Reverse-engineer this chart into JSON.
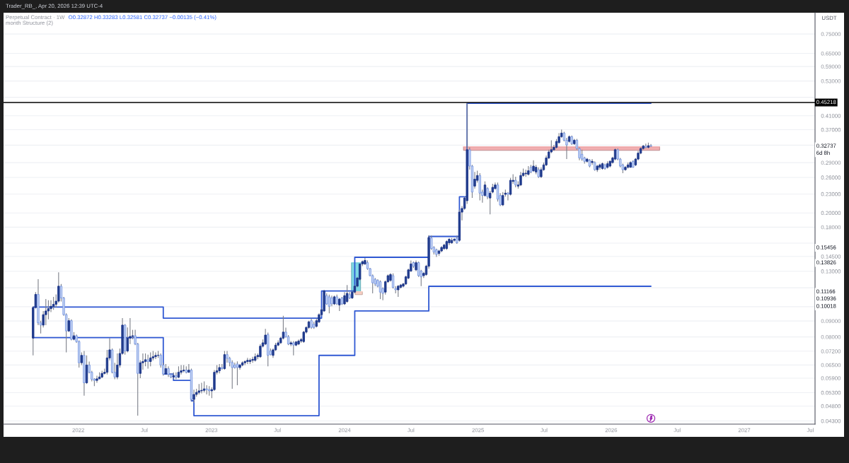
{
  "chart_data": {
    "type": "candlestick",
    "title": "Perpetual Contract · 1W",
    "subtitle": "O0.32872 H0.33283 L0.32581 C0.32737 −0.00135 (−0.41%)",
    "ylabel": "USDT",
    "annotations": [
      "Trader_RB_, Apr 20, 2026 12:39 UTC-4",
      "month Structure (2)",
      {
        "text": "0.32737",
        "y": 0.32737
      },
      "6d 8h",
      {
        "text": "0.15456",
        "y": 0.15456
      },
      {
        "text": "0.13826",
        "y": 0.13826
      },
      {
        "text": "0.11166",
        "y": 0.11166
      },
      "0.10936",
      {
        "text": "0.10018",
        "y": 0.10018
      }
    ],
    "x": [
      "2021-08-30",
      "2021-09-06",
      "2021-09-13",
      "2021-09-20",
      "2021-09-27",
      "2021-10-04",
      "2021-10-11",
      "2021-10-18",
      "2021-10-25",
      "2021-11-01",
      "2021-11-08",
      "2021-11-15",
      "2021-11-22",
      "2021-11-29",
      "2021-12-06",
      "2021-12-13",
      "2021-12-20",
      "2021-12-27",
      "2022-01-03",
      "2022-01-10",
      "2022-01-17",
      "2022-01-24",
      "2022-01-31",
      "2022-02-07",
      "2022-02-14",
      "2022-02-21",
      "2022-02-28",
      "2022-03-07",
      "2022-03-14",
      "2022-03-21",
      "2022-03-28",
      "2022-04-04",
      "2022-04-11",
      "2022-04-18",
      "2022-04-25",
      "2022-05-02",
      "2022-05-09",
      "2022-05-16",
      "2022-05-23",
      "2022-05-30",
      "2022-06-06",
      "2022-06-13",
      "2022-06-20",
      "2022-06-27",
      "2022-07-04",
      "2022-07-11",
      "2022-07-18",
      "2022-07-25",
      "2022-08-01",
      "2022-08-08",
      "2022-08-15",
      "2022-08-22",
      "2022-08-29",
      "2022-09-05",
      "2022-09-12",
      "2022-09-19",
      "2022-09-26",
      "2022-10-03",
      "2022-10-10",
      "2022-10-17",
      "2022-10-24",
      "2022-10-31",
      "2022-11-07",
      "2022-11-14",
      "2022-11-21",
      "2022-11-28",
      "2022-12-05",
      "2022-12-12",
      "2022-12-19",
      "2022-12-26",
      "2023-01-02",
      "2023-01-09",
      "2023-01-16",
      "2023-01-23",
      "2023-01-30",
      "2023-02-06",
      "2023-02-13",
      "2023-02-20",
      "2023-02-27",
      "2023-03-06",
      "2023-03-13",
      "2023-03-20",
      "2023-03-27",
      "2023-04-03",
      "2023-04-10",
      "2023-04-17",
      "2023-04-24",
      "2023-05-01",
      "2023-05-08",
      "2023-05-15",
      "2023-05-22",
      "2023-05-29",
      "2023-06-05",
      "2023-06-12",
      "2023-06-19",
      "2023-06-26",
      "2023-07-03",
      "2023-07-10",
      "2023-07-17",
      "2023-07-24",
      "2023-07-31",
      "2023-08-07",
      "2023-08-14",
      "2023-08-21",
      "2023-08-28",
      "2023-09-04",
      "2023-09-11",
      "2023-09-18",
      "2023-09-25",
      "2023-10-02",
      "2023-10-09",
      "2023-10-16",
      "2023-10-23",
      "2023-10-30",
      "2023-11-06",
      "2023-11-13",
      "2023-11-20",
      "2023-11-27",
      "2023-12-04",
      "2023-12-11",
      "2023-12-18",
      "2023-12-25",
      "2024-01-01",
      "2024-01-08",
      "2024-01-15",
      "2024-01-22",
      "2024-01-29",
      "2024-02-05",
      "2024-02-12",
      "2024-02-19",
      "2024-02-26",
      "2024-03-04",
      "2024-03-11",
      "2024-03-18",
      "2024-03-25",
      "2024-04-01",
      "2024-04-08",
      "2024-04-15",
      "2024-04-22",
      "2024-04-29",
      "2024-05-06",
      "2024-05-13",
      "2024-05-20",
      "2024-05-27",
      "2024-06-03",
      "2024-06-10",
      "2024-06-17",
      "2024-06-24",
      "2024-07-01",
      "2024-07-08",
      "2024-07-15",
      "2024-07-22",
      "2024-07-29",
      "2024-08-05",
      "2024-08-12",
      "2024-08-19",
      "2024-08-26",
      "2024-09-02",
      "2024-09-09",
      "2024-09-16",
      "2024-09-23",
      "2024-09-30",
      "2024-10-07",
      "2024-10-14",
      "2024-10-21",
      "2024-10-28",
      "2024-11-04",
      "2024-11-11",
      "2024-11-18",
      "2024-11-25",
      "2024-12-02",
      "2024-12-09",
      "2024-12-16",
      "2024-12-23",
      "2024-12-30",
      "2025-01-06",
      "2025-01-13",
      "2025-01-20",
      "2025-01-27",
      "2025-02-03",
      "2025-02-10",
      "2025-02-17",
      "2025-02-24",
      "2025-03-03",
      "2025-03-10",
      "2025-03-17",
      "2025-03-24",
      "2025-03-31",
      "2025-04-07",
      "2025-04-14",
      "2025-04-21",
      "2025-04-28",
      "2025-05-05",
      "2025-05-12",
      "2025-05-19",
      "2025-05-26",
      "2025-06-02",
      "2025-06-09",
      "2025-06-16",
      "2025-06-23",
      "2025-06-30",
      "2025-07-07",
      "2025-07-14",
      "2025-07-21",
      "2025-07-28",
      "2025-08-04",
      "2025-08-11",
      "2025-08-18",
      "2025-08-25",
      "2025-09-01",
      "2025-09-08",
      "2025-09-15",
      "2025-09-22",
      "2025-09-29",
      "2025-10-06",
      "2025-10-13",
      "2025-10-20",
      "2025-10-27",
      "2025-11-03",
      "2025-11-10",
      "2025-11-17",
      "2025-11-24",
      "2025-12-01",
      "2025-12-08",
      "2025-12-15",
      "2025-12-22",
      "2025-12-29",
      "2026-01-05",
      "2026-01-12",
      "2026-01-19",
      "2026-01-26",
      "2026-02-02",
      "2026-02-09",
      "2026-02-16",
      "2026-02-23",
      "2026-03-02",
      "2026-03-09",
      "2026-03-16",
      "2026-03-23",
      "2026-03-30",
      "2026-04-06",
      "2026-04-13",
      "2026-04-20"
    ],
    "ohlc": [
      [
        0.0793,
        0.1003,
        0.0698,
        0.0994
      ],
      [
        0.0994,
        0.1114,
        0.0986,
        0.1095
      ],
      [
        0.1095,
        0.1225,
        0.0873,
        0.0887
      ],
      [
        0.0887,
        0.0902,
        0.0821,
        0.0873
      ],
      [
        0.0873,
        0.0969,
        0.0858,
        0.0943
      ],
      [
        0.0943,
        0.1058,
        0.0873,
        0.0969
      ],
      [
        0.0969,
        0.1049,
        0.0911,
        0.0986
      ],
      [
        0.0986,
        0.1049,
        0.0961,
        0.1003
      ],
      [
        0.1003,
        0.1075,
        0.0978,
        0.1018
      ],
      [
        0.1018,
        0.1095,
        0.0994,
        0.1042
      ],
      [
        0.1042,
        0.129,
        0.103,
        0.1164
      ],
      [
        0.1164,
        0.1183,
        0.1039,
        0.1067
      ],
      [
        0.1067,
        0.1075,
        0.0935,
        0.0943
      ],
      [
        0.0943,
        0.0953,
        0.0714,
        0.0836
      ],
      [
        0.0836,
        0.0919,
        0.0829,
        0.0902
      ],
      [
        0.0902,
        0.0911,
        0.078,
        0.0786
      ],
      [
        0.0786,
        0.0829,
        0.078,
        0.0807
      ],
      [
        0.0807,
        0.0814,
        0.0766,
        0.0773
      ],
      [
        0.0773,
        0.078,
        0.0638,
        0.0661
      ],
      [
        0.0661,
        0.0714,
        0.065,
        0.0698
      ],
      [
        0.0698,
        0.0721,
        0.0518,
        0.057
      ],
      [
        0.057,
        0.0698,
        0.0565,
        0.065
      ],
      [
        0.065,
        0.0667,
        0.0611,
        0.0616
      ],
      [
        0.0616,
        0.0623,
        0.0576,
        0.0585
      ],
      [
        0.0585,
        0.059,
        0.0556,
        0.058
      ],
      [
        0.058,
        0.0601,
        0.057,
        0.0587
      ],
      [
        0.0587,
        0.0616,
        0.0585,
        0.0595
      ],
      [
        0.0595,
        0.0623,
        0.059,
        0.0611
      ],
      [
        0.0611,
        0.0633,
        0.0606,
        0.0616
      ],
      [
        0.0616,
        0.0727,
        0.0606,
        0.0685
      ],
      [
        0.0685,
        0.0793,
        0.0673,
        0.0727
      ],
      [
        0.0727,
        0.0734,
        0.0611,
        0.0616
      ],
      [
        0.0616,
        0.0661,
        0.0585,
        0.0595
      ],
      [
        0.0595,
        0.0708,
        0.0585,
        0.065
      ],
      [
        0.065,
        0.0734,
        0.0638,
        0.0708
      ],
      [
        0.0708,
        0.0919,
        0.0702,
        0.0873
      ],
      [
        0.0873,
        0.0879,
        0.0702,
        0.0721
      ],
      [
        0.0721,
        0.0858,
        0.0714,
        0.0793
      ],
      [
        0.0793,
        0.0919,
        0.0759,
        0.0803
      ],
      [
        0.0803,
        0.0843,
        0.0786,
        0.0807
      ],
      [
        0.0807,
        0.0843,
        0.0753,
        0.0759
      ],
      [
        0.0759,
        0.0766,
        0.0447,
        0.0611
      ],
      [
        0.0611,
        0.0673,
        0.059,
        0.0661
      ],
      [
        0.0661,
        0.0708,
        0.0628,
        0.0667
      ],
      [
        0.0667,
        0.0708,
        0.0644,
        0.0676
      ],
      [
        0.0676,
        0.0702,
        0.0633,
        0.0667
      ],
      [
        0.0667,
        0.0714,
        0.0644,
        0.0685
      ],
      [
        0.0685,
        0.0721,
        0.0673,
        0.0691
      ],
      [
        0.0691,
        0.0714,
        0.0679,
        0.0698
      ],
      [
        0.0698,
        0.0721,
        0.0685,
        0.0699
      ],
      [
        0.0699,
        0.0708,
        0.0638,
        0.065
      ],
      [
        0.065,
        0.0661,
        0.0601,
        0.0608
      ],
      [
        0.0608,
        0.0655,
        0.0606,
        0.0633
      ],
      [
        0.0633,
        0.0644,
        0.0595,
        0.0606
      ],
      [
        0.0606,
        0.0611,
        0.059,
        0.0595
      ],
      [
        0.0595,
        0.0616,
        0.0585,
        0.0601
      ],
      [
        0.0601,
        0.0616,
        0.0585,
        0.0594
      ],
      [
        0.0594,
        0.0644,
        0.059,
        0.0616
      ],
      [
        0.0616,
        0.065,
        0.0606,
        0.0623
      ],
      [
        0.0623,
        0.065,
        0.0616,
        0.0626
      ],
      [
        0.0626,
        0.0644,
        0.0611,
        0.0616
      ],
      [
        0.0616,
        0.0655,
        0.0614,
        0.0626
      ],
      [
        0.0626,
        0.0633,
        0.0499,
        0.0504
      ],
      [
        0.0504,
        0.0542,
        0.0491,
        0.0523
      ],
      [
        0.0523,
        0.0545,
        0.0514,
        0.0531
      ],
      [
        0.0531,
        0.0565,
        0.0523,
        0.0537
      ],
      [
        0.0537,
        0.057,
        0.0527,
        0.0539
      ],
      [
        0.0539,
        0.0576,
        0.0531,
        0.0545
      ],
      [
        0.0545,
        0.056,
        0.0523,
        0.0542
      ],
      [
        0.0542,
        0.0556,
        0.0518,
        0.0537
      ],
      [
        0.0537,
        0.0551,
        0.0509,
        0.0542
      ],
      [
        0.0542,
        0.0626,
        0.0537,
        0.0616
      ],
      [
        0.0616,
        0.065,
        0.0606,
        0.0623
      ],
      [
        0.0623,
        0.0655,
        0.0611,
        0.0638
      ],
      [
        0.0638,
        0.0655,
        0.0628,
        0.0633
      ],
      [
        0.0633,
        0.0721,
        0.0628,
        0.0702
      ],
      [
        0.0702,
        0.0721,
        0.0662,
        0.0683
      ],
      [
        0.0683,
        0.0691,
        0.0644,
        0.0662
      ],
      [
        0.0662,
        0.0673,
        0.0545,
        0.0638
      ],
      [
        0.065,
        0.0662,
        0.0633,
        0.0638
      ],
      [
        0.0655,
        0.0668,
        0.056,
        0.0638
      ],
      [
        0.0638,
        0.0655,
        0.0628,
        0.065
      ],
      [
        0.065,
        0.0668,
        0.0644,
        0.0661
      ],
      [
        0.0661,
        0.0673,
        0.065,
        0.0667
      ],
      [
        0.0667,
        0.0685,
        0.0655,
        0.0673
      ],
      [
        0.0667,
        0.0683,
        0.0655,
        0.0673
      ],
      [
        0.0673,
        0.0691,
        0.0661,
        0.0678
      ],
      [
        0.0673,
        0.0708,
        0.0667,
        0.0691
      ],
      [
        0.0691,
        0.0708,
        0.0678,
        0.0698
      ],
      [
        0.0691,
        0.0759,
        0.0685,
        0.0747
      ],
      [
        0.0747,
        0.0785,
        0.074,
        0.0766
      ],
      [
        0.0759,
        0.0849,
        0.0753,
        0.0811
      ],
      [
        0.0814,
        0.0826,
        0.0644,
        0.0698
      ],
      [
        0.0721,
        0.0734,
        0.0698,
        0.0702
      ],
      [
        0.0698,
        0.0734,
        0.0685,
        0.0727
      ],
      [
        0.0727,
        0.0766,
        0.0721,
        0.0753
      ],
      [
        0.0753,
        0.078,
        0.0747,
        0.0766
      ],
      [
        0.0766,
        0.0801,
        0.0759,
        0.0793
      ],
      [
        0.0793,
        0.0935,
        0.0785,
        0.0829
      ],
      [
        0.0829,
        0.0857,
        0.0795,
        0.0801
      ],
      [
        0.0801,
        0.0811,
        0.0753,
        0.0759
      ],
      [
        0.0759,
        0.0776,
        0.0747,
        0.0766
      ],
      [
        0.0766,
        0.0776,
        0.0698,
        0.0753
      ],
      [
        0.0753,
        0.0776,
        0.0747,
        0.0771
      ],
      [
        0.0759,
        0.0785,
        0.0753,
        0.0776
      ],
      [
        0.0776,
        0.0793,
        0.0766,
        0.0785
      ],
      [
        0.0773,
        0.0836,
        0.0766,
        0.0829
      ],
      [
        0.0829,
        0.0865,
        0.0821,
        0.0858
      ],
      [
        0.0858,
        0.0902,
        0.0849,
        0.0894
      ],
      [
        0.0902,
        0.0917,
        0.0849,
        0.0858
      ],
      [
        0.0879,
        0.0894,
        0.0849,
        0.0858
      ],
      [
        0.0865,
        0.0917,
        0.0858,
        0.0902
      ],
      [
        0.0894,
        0.0953,
        0.0886,
        0.0943
      ],
      [
        0.0943,
        0.0986,
        0.0935,
        0.0978
      ],
      [
        0.0969,
        0.1133,
        0.0963,
        0.1123
      ],
      [
        0.1085,
        0.1104,
        0.1013,
        0.1021
      ],
      [
        0.1076,
        0.1094,
        0.0953,
        0.1003
      ],
      [
        0.1067,
        0.1085,
        0.1003,
        0.1021
      ],
      [
        0.1021,
        0.1085,
        0.1013,
        0.1076
      ],
      [
        0.1076,
        0.1094,
        0.1013,
        0.1021
      ],
      [
        0.1013,
        0.1067,
        0.0969,
        0.1058
      ],
      [
        0.1067,
        0.1076,
        0.1013,
        0.1021
      ],
      [
        0.1021,
        0.1114,
        0.1013,
        0.1085
      ],
      [
        0.1039,
        0.1174,
        0.103,
        0.1104
      ],
      [
        0.1094,
        0.1114,
        0.1058,
        0.1067
      ],
      [
        0.1067,
        0.1123,
        0.1058,
        0.1114
      ],
      [
        0.1114,
        0.1174,
        0.1104,
        0.1164
      ],
      [
        0.1164,
        0.1247,
        0.1154,
        0.1236
      ],
      [
        0.1225,
        0.1372,
        0.1215,
        0.1372
      ],
      [
        0.1372,
        0.1408,
        0.1349,
        0.1396
      ],
      [
        0.1372,
        0.1434,
        0.1363,
        0.1408
      ],
      [
        0.1385,
        0.1408,
        0.1313,
        0.1325
      ],
      [
        0.1325,
        0.1333,
        0.1252,
        0.1258
      ],
      [
        0.1258,
        0.1269,
        0.1104,
        0.1193
      ],
      [
        0.1225,
        0.1236,
        0.1164,
        0.1183
      ],
      [
        0.1215,
        0.1225,
        0.1154,
        0.1164
      ],
      [
        0.1203,
        0.1215,
        0.1058,
        0.1114
      ],
      [
        0.1144,
        0.1154,
        0.1049,
        0.1104
      ],
      [
        0.1114,
        0.1215,
        0.1094,
        0.1203
      ],
      [
        0.1203,
        0.1269,
        0.1193,
        0.1258
      ],
      [
        0.1215,
        0.1281,
        0.1203,
        0.1269
      ],
      [
        0.1258,
        0.128,
        0.1144,
        0.1154
      ],
      [
        0.1144,
        0.1164,
        0.1104,
        0.1133
      ],
      [
        0.1133,
        0.1174,
        0.1076,
        0.1164
      ],
      [
        0.1154,
        0.1183,
        0.1144,
        0.1174
      ],
      [
        0.1164,
        0.1193,
        0.1154,
        0.1183
      ],
      [
        0.1183,
        0.1258,
        0.1174,
        0.1247
      ],
      [
        0.1236,
        0.1325,
        0.1225,
        0.1313
      ],
      [
        0.1302,
        0.1408,
        0.1292,
        0.1372
      ],
      [
        0.1385,
        0.1396,
        0.1333,
        0.1349
      ],
      [
        0.1313,
        0.1408,
        0.1302,
        0.1385
      ],
      [
        0.1385,
        0.1396,
        0.1247,
        0.1258
      ],
      [
        0.1302,
        0.1313,
        0.1164,
        0.1247
      ],
      [
        0.1258,
        0.1292,
        0.1236,
        0.128
      ],
      [
        0.1269,
        0.1363,
        0.1258,
        0.1349
      ],
      [
        0.1349,
        0.1697,
        0.1325,
        0.1667
      ],
      [
        0.1662,
        0.1692,
        0.1523,
        0.1537
      ],
      [
        0.155,
        0.1564,
        0.1471,
        0.1497
      ],
      [
        0.1523,
        0.1537,
        0.1444,
        0.1471
      ],
      [
        0.1483,
        0.1523,
        0.1458,
        0.151
      ],
      [
        0.151,
        0.1564,
        0.1497,
        0.155
      ],
      [
        0.1537,
        0.1591,
        0.1523,
        0.1577
      ],
      [
        0.1537,
        0.1633,
        0.1523,
        0.1619
      ],
      [
        0.1604,
        0.1662,
        0.1577,
        0.1646
      ],
      [
        0.1604,
        0.1662,
        0.1591,
        0.1633
      ],
      [
        0.1633,
        0.1662,
        0.1619,
        0.1646
      ],
      [
        0.1662,
        0.1692,
        0.1591,
        0.1604
      ],
      [
        0.1633,
        0.2048,
        0.1619,
        0.2012
      ],
      [
        0.2012,
        0.2103,
        0.1894,
        0.2067
      ],
      [
        0.2067,
        0.2254,
        0.2048,
        0.2233
      ],
      [
        0.2189,
        0.4498,
        0.2138,
        0.3191
      ],
      [
        0.3191,
        0.3248,
        0.2752,
        0.2827
      ],
      [
        0.2827,
        0.2852,
        0.2233,
        0.2333
      ],
      [
        0.2438,
        0.2707,
        0.2395,
        0.2567
      ],
      [
        0.2545,
        0.2731,
        0.2503,
        0.2637
      ],
      [
        0.2637,
        0.2683,
        0.2195,
        0.2315
      ],
      [
        0.2333,
        0.2375,
        0.2156,
        0.2275
      ],
      [
        0.2275,
        0.2525,
        0.2254,
        0.2459
      ],
      [
        0.2395,
        0.2416,
        0.2214,
        0.2254
      ],
      [
        0.2233,
        0.2353,
        0.1978,
        0.2315
      ],
      [
        0.2333,
        0.248,
        0.2313,
        0.2416
      ],
      [
        0.2395,
        0.2503,
        0.2375,
        0.2459
      ],
      [
        0.2459,
        0.2503,
        0.2175,
        0.2214
      ],
      [
        0.2275,
        0.2315,
        0.2103,
        0.2122
      ],
      [
        0.2122,
        0.2333,
        0.2103,
        0.2275
      ],
      [
        0.2294,
        0.2375,
        0.2254,
        0.2315
      ],
      [
        0.2315,
        0.2333,
        0.2195,
        0.2294
      ],
      [
        0.2294,
        0.2591,
        0.2275,
        0.2545
      ],
      [
        0.2525,
        0.266,
        0.248,
        0.2545
      ],
      [
        0.2545,
        0.2613,
        0.2416,
        0.2459
      ],
      [
        0.2438,
        0.2525,
        0.2395,
        0.2459
      ],
      [
        0.2459,
        0.2707,
        0.2438,
        0.2637
      ],
      [
        0.2637,
        0.2777,
        0.2613,
        0.2683
      ],
      [
        0.2671,
        0.2752,
        0.2613,
        0.2683
      ],
      [
        0.266,
        0.2827,
        0.2637,
        0.2731
      ],
      [
        0.2802,
        0.2852,
        0.2683,
        0.2707
      ],
      [
        0.2731,
        0.2951,
        0.2707,
        0.2827
      ],
      [
        0.2707,
        0.2852,
        0.266,
        0.2802
      ],
      [
        0.2752,
        0.2802,
        0.2591,
        0.2613
      ],
      [
        0.2613,
        0.2802,
        0.2591,
        0.2752
      ],
      [
        0.2752,
        0.2902,
        0.2731,
        0.2852
      ],
      [
        0.2852,
        0.3056,
        0.2827,
        0.3003
      ],
      [
        0.3003,
        0.3191,
        0.2977,
        0.3138
      ],
      [
        0.3138,
        0.3422,
        0.3111,
        0.3191
      ],
      [
        0.3191,
        0.3304,
        0.3163,
        0.3248
      ],
      [
        0.3248,
        0.3454,
        0.3219,
        0.3392
      ],
      [
        0.3363,
        0.3608,
        0.3335,
        0.3514
      ],
      [
        0.3514,
        0.3704,
        0.3484,
        0.3608
      ],
      [
        0.3608,
        0.364,
        0.3392,
        0.3422
      ],
      [
        0.3422,
        0.3484,
        0.2977,
        0.3304
      ],
      [
        0.3392,
        0.3544,
        0.3363,
        0.3514
      ],
      [
        0.3514,
        0.3544,
        0.3304,
        0.3335
      ],
      [
        0.3335,
        0.3454,
        0.3304,
        0.3422
      ],
      [
        0.3422,
        0.3454,
        0.3191,
        0.3219
      ],
      [
        0.3219,
        0.3248,
        0.2951,
        0.3003
      ],
      [
        0.3084,
        0.3191,
        0.2941,
        0.2977
      ],
      [
        0.3003,
        0.303,
        0.2877,
        0.2928
      ],
      [
        0.2928,
        0.3003,
        0.2902,
        0.2977
      ],
      [
        0.2951,
        0.2977,
        0.2802,
        0.2827
      ],
      [
        0.2902,
        0.2977,
        0.2852,
        0.2928
      ],
      [
        0.2902,
        0.2928,
        0.2731,
        0.2752
      ],
      [
        0.2752,
        0.2852,
        0.2707,
        0.2827
      ],
      [
        0.2802,
        0.2877,
        0.2752,
        0.2852
      ],
      [
        0.2777,
        0.2902,
        0.2752,
        0.2877
      ],
      [
        0.2852,
        0.2877,
        0.2752,
        0.2777
      ],
      [
        0.2802,
        0.2928,
        0.2777,
        0.2877
      ],
      [
        0.2827,
        0.2951,
        0.2802,
        0.2928
      ],
      [
        0.2902,
        0.303,
        0.2877,
        0.3003
      ],
      [
        0.2977,
        0.3219,
        0.2951,
        0.3191
      ],
      [
        0.3191,
        0.3219,
        0.2951,
        0.2977
      ],
      [
        0.2977,
        0.3003,
        0.2802,
        0.2827
      ],
      [
        0.2852,
        0.2877,
        0.2683,
        0.2752
      ],
      [
        0.2752,
        0.2827,
        0.2731,
        0.2802
      ],
      [
        0.2802,
        0.2902,
        0.2777,
        0.2852
      ],
      [
        0.2802,
        0.2928,
        0.2792,
        0.2902
      ],
      [
        0.2928,
        0.2951,
        0.2792,
        0.2802
      ],
      [
        0.2852,
        0.3003,
        0.2827,
        0.2977
      ],
      [
        0.2977,
        0.3163,
        0.2951,
        0.3111
      ],
      [
        0.3111,
        0.3248,
        0.3084,
        0.3219
      ],
      [
        0.3219,
        0.3304,
        0.3191,
        0.3277
      ],
      [
        0.3277,
        0.3335,
        0.3219,
        0.3248
      ],
      [
        0.3248,
        0.3364,
        0.3219,
        0.3287
      ],
      [
        0.32872,
        0.33283,
        0.32581,
        0.32737
      ]
    ],
    "colors": [
      "#23408e",
      "#23408e",
      "#c9d6f0",
      "#c9d6f0",
      "#23408e",
      "#23408e",
      "#23408e",
      "#23408e",
      "#23408e",
      "#23408e",
      "#23408e",
      "#c9d6f0",
      "#c9d6f0",
      "#c9d6f0",
      "#23408e",
      "#c9d6f0",
      "#23408e",
      "#c9d6f0",
      "#c9d6f0",
      "#23408e",
      "#c9d6f0",
      "#23408e",
      "#c9d6f0",
      "#c9d6f0",
      "#c9d6f0",
      "#23408e",
      "#23408e",
      "#23408e",
      "#23408e",
      "#23408e",
      "#23408e",
      "#c9d6f0",
      "#c9d6f0",
      "#23408e",
      "#23408e",
      "#23408e",
      "#c9d6f0",
      "#23408e",
      "#23408e",
      "#23408e",
      "#c9d6f0",
      "#c9d6f0",
      "#23408e",
      "#23408e",
      "#23408e",
      "#c9d6f0",
      "#23408e",
      "#23408e",
      "#23408e",
      "#23408e",
      "#c9d6f0",
      "#c9d6f0",
      "#23408e",
      "#c9d6f0",
      "#c9d6f0",
      "#23408e",
      "#c9d6f0",
      "#23408e",
      "#23408e",
      "#23408e",
      "#c9d6f0",
      "#23408e",
      "#c9d6f0",
      "#23408e",
      "#23408e",
      "#23408e",
      "#23408e",
      "#23408e",
      "#c9d6f0",
      "#c9d6f0",
      "#23408e",
      "#23408e",
      "#23408e",
      "#23408e",
      "#c9d6f0",
      "#23408e",
      "#c9d6f0",
      "#c9d6f0",
      "#c9d6f0",
      "#c9d6f0",
      "#c9d6f0",
      "#23408e",
      "#23408e",
      "#23408e",
      "#23408e",
      "#23408e",
      "#23408e",
      "#23408e",
      "#23408e",
      "#23408e",
      "#23408e",
      "#23408e",
      "#c9d6f0",
      "#c9d6f0",
      "#23408e",
      "#23408e",
      "#23408e",
      "#23408e",
      "#23408e",
      "#c9d6f0",
      "#c9d6f0",
      "#23408e",
      "#c9d6f0",
      "#23408e",
      "#23408e",
      "#23408e",
      "#23408e",
      "#23408e",
      "#23408e",
      "#c9d6f0",
      "#c9d6f0",
      "#23408e",
      "#23408e",
      "#23408e",
      "#23408e",
      "#c9d6f0",
      "#c9d6f0",
      "#c9d6f0",
      "#23408e",
      "#c9d6f0",
      "#23408e",
      "#c9d6f0",
      "#23408e",
      "#23408e",
      "#c9d6f0",
      "#23408e",
      "#23408e",
      "#23408e",
      "#23408e",
      "#23408e",
      "#23408e",
      "#c9d6f0",
      "#c9d6f0",
      "#c9d6f0",
      "#c9d6f0",
      "#c9d6f0",
      "#c9d6f0",
      "#c9d6f0",
      "#23408e",
      "#23408e",
      "#23408e",
      "#c9d6f0",
      "#c9d6f0",
      "#23408e",
      "#23408e",
      "#23408e",
      "#23408e",
      "#23408e",
      "#23408e",
      "#c9d6f0",
      "#23408e",
      "#c9d6f0",
      "#c9d6f0",
      "#23408e",
      "#23408e",
      "#23408e",
      "#c9d6f0",
      "#c9d6f0",
      "#c9d6f0",
      "#23408e",
      "#23408e",
      "#23408e",
      "#23408e",
      "#23408e",
      "#23408e",
      "#23408e",
      "#c9d6f0",
      "#23408e",
      "#23408e",
      "#23408e",
      "#23408e",
      "#c9d6f0",
      "#c9d6f0",
      "#23408e",
      "#23408e",
      "#c9d6f0",
      "#c9d6f0",
      "#23408e",
      "#c9d6f0",
      "#23408e",
      "#23408e",
      "#23408e",
      "#c9d6f0",
      "#c9d6f0",
      "#23408e",
      "#23408e",
      "#c9d6f0",
      "#23408e",
      "#23408e",
      "#c9d6f0",
      "#23408e",
      "#23408e",
      "#23408e",
      "#23408e",
      "#23408e",
      "#c9d6f0",
      "#23408e",
      "#23408e",
      "#c9d6f0",
      "#23408e",
      "#23408e",
      "#23408e",
      "#23408e",
      "#23408e",
      "#23408e",
      "#23408e",
      "#23408e",
      "#23408e",
      "#c9d6f0",
      "#c9d6f0",
      "#23408e",
      "#c9d6f0",
      "#23408e",
      "#c9d6f0",
      "#c9d6f0",
      "#c9d6f0",
      "#c9d6f0",
      "#23408e",
      "#c9d6f0",
      "#23408e",
      "#c9d6f0",
      "#23408e",
      "#23408e",
      "#23408e",
      "#c9d6f0",
      "#23408e",
      "#23408e",
      "#23408e",
      "#23408e",
      "#c9d6f0",
      "#c9d6f0",
      "#c9d6f0",
      "#23408e",
      "#23408e",
      "#23408e",
      "#c9d6f0",
      "#23408e",
      "#23408e",
      "#23408e",
      "#23408e",
      "#c9d6f0",
      "#23408e",
      "#c9d6f0"
    ],
    "series": [
      {
        "type": "step",
        "color": "#3059d3",
        "x": [
          "2021-08-30",
          "2022-08-22",
          "2023-10-30",
          "2024-01-29",
          "2024-08-19",
          "2024-11-11",
          "2024-12-02",
          "2026-04-20"
        ],
        "values": [
          0.0998,
          0.0919,
          0.1123,
          0.1441,
          0.1681,
          0.2254,
          0.4498,
          0.4498
        ]
      },
      {
        "type": "step",
        "color": "#3059d3",
        "x": [
          "2021-08-30",
          "2022-08-22",
          "2022-09-19",
          "2022-11-07",
          "2022-11-14",
          "2023-10-23",
          "2024-01-29",
          "2024-08-19",
          "2026-04-20"
        ],
        "values": [
          0.0796,
          0.0608,
          0.058,
          0.0499,
          0.0447,
          0.0698,
          0.0969,
          0.1163,
          0.1163
        ]
      },
      {
        "type": "line",
        "color": "#7fd8e4",
        "x": [
          "2024-01-20",
          "2024-02-14"
        ],
        "values": [
          0.13826,
          0.13826
        ],
        "lower": [
          0.11166,
          0.11166
        ],
        "upper": [
          0.13826,
          0.13826
        ]
      },
      {
        "type": "line",
        "color": "#f8cfc4",
        "x": [
          "2024-01-30",
          "2024-02-19"
        ],
        "values": [
          0.11166,
          0.11166
        ],
        "lower": [
          0.10936,
          0.10936
        ],
        "upper": [
          0.11166,
          0.11166
        ]
      },
      {
        "type": "line",
        "color": "#f2aeb0",
        "x": [
          "2024-11-22",
          "2026-05-14"
        ],
        "values": [
          0.3259,
          0.3259
        ],
        "lower": [
          0.3175,
          0.3175
        ],
        "upper": [
          0.3259,
          0.3259
        ]
      }
    ],
    "ref_lines": [
      {
        "axis": "y",
        "value": 0.45218,
        "label": "0.45218",
        "color": "#000000"
      }
    ],
    "log": true,
    "grid": "y",
    "xlim": [
      "2021-06-10",
      "2027-07-14"
    ],
    "xticks": [
      {
        "value": "2022-01-01",
        "label": "2022"
      },
      {
        "value": "2022-07-01",
        "label": "Jul"
      },
      {
        "value": "2023-01-01",
        "label": "2023"
      },
      {
        "value": "2023-07-01",
        "label": "Jul"
      },
      {
        "value": "2024-01-01",
        "label": "2024"
      },
      {
        "value": "2024-07-01",
        "label": "Jul"
      },
      {
        "value": "2025-01-01",
        "label": "2025"
      },
      {
        "value": "2025-07-01",
        "label": "Jul"
      },
      {
        "value": "2026-01-01",
        "label": "2026"
      },
      {
        "value": "2026-07-01",
        "label": "Jul"
      },
      {
        "value": "2027-01-01",
        "label": "2027"
      },
      {
        "value": "2027-07-01",
        "label": "Jul"
      }
    ],
    "ylim": [
      0.042,
      0.878
    ],
    "yticks": [
      {
        "value": 0.043,
        "label": "0.04300"
      },
      {
        "value": 0.048,
        "label": "0.04800"
      },
      {
        "value": 0.053,
        "label": "0.05300"
      },
      {
        "value": 0.059,
        "label": "0.05900"
      },
      {
        "value": 0.065,
        "label": "0.06500"
      },
      {
        "value": 0.072,
        "label": "0.07200"
      },
      {
        "value": 0.08,
        "label": "0.08000"
      },
      {
        "value": 0.09,
        "label": "0.09000"
      },
      {
        "value": 0.1,
        "label": null
      },
      {
        "value": 0.115,
        "label": null
      },
      {
        "value": 0.13,
        "label": "0.13000"
      },
      {
        "value": 0.145,
        "label": "0.14500"
      },
      {
        "value": 0.16,
        "label": null
      },
      {
        "value": 0.18,
        "label": "0.18000"
      },
      {
        "value": 0.2,
        "label": "0.20000"
      },
      {
        "value": 0.23,
        "label": "0.23000"
      },
      {
        "value": 0.26,
        "label": "0.26000"
      },
      {
        "value": 0.29,
        "label": "0.29000"
      },
      {
        "value": 0.33,
        "label": null
      },
      {
        "value": 0.37,
        "label": "0.37000"
      },
      {
        "value": 0.41,
        "label": "0.41000"
      },
      {
        "value": 0.47,
        "label": null
      },
      {
        "value": 0.53,
        "label": "0.53000"
      },
      {
        "value": 0.59,
        "label": "0.59000"
      },
      {
        "value": 0.65,
        "label": "0.65000"
      },
      {
        "value": 0.75,
        "label": "0.75000"
      }
    ]
  }
}
